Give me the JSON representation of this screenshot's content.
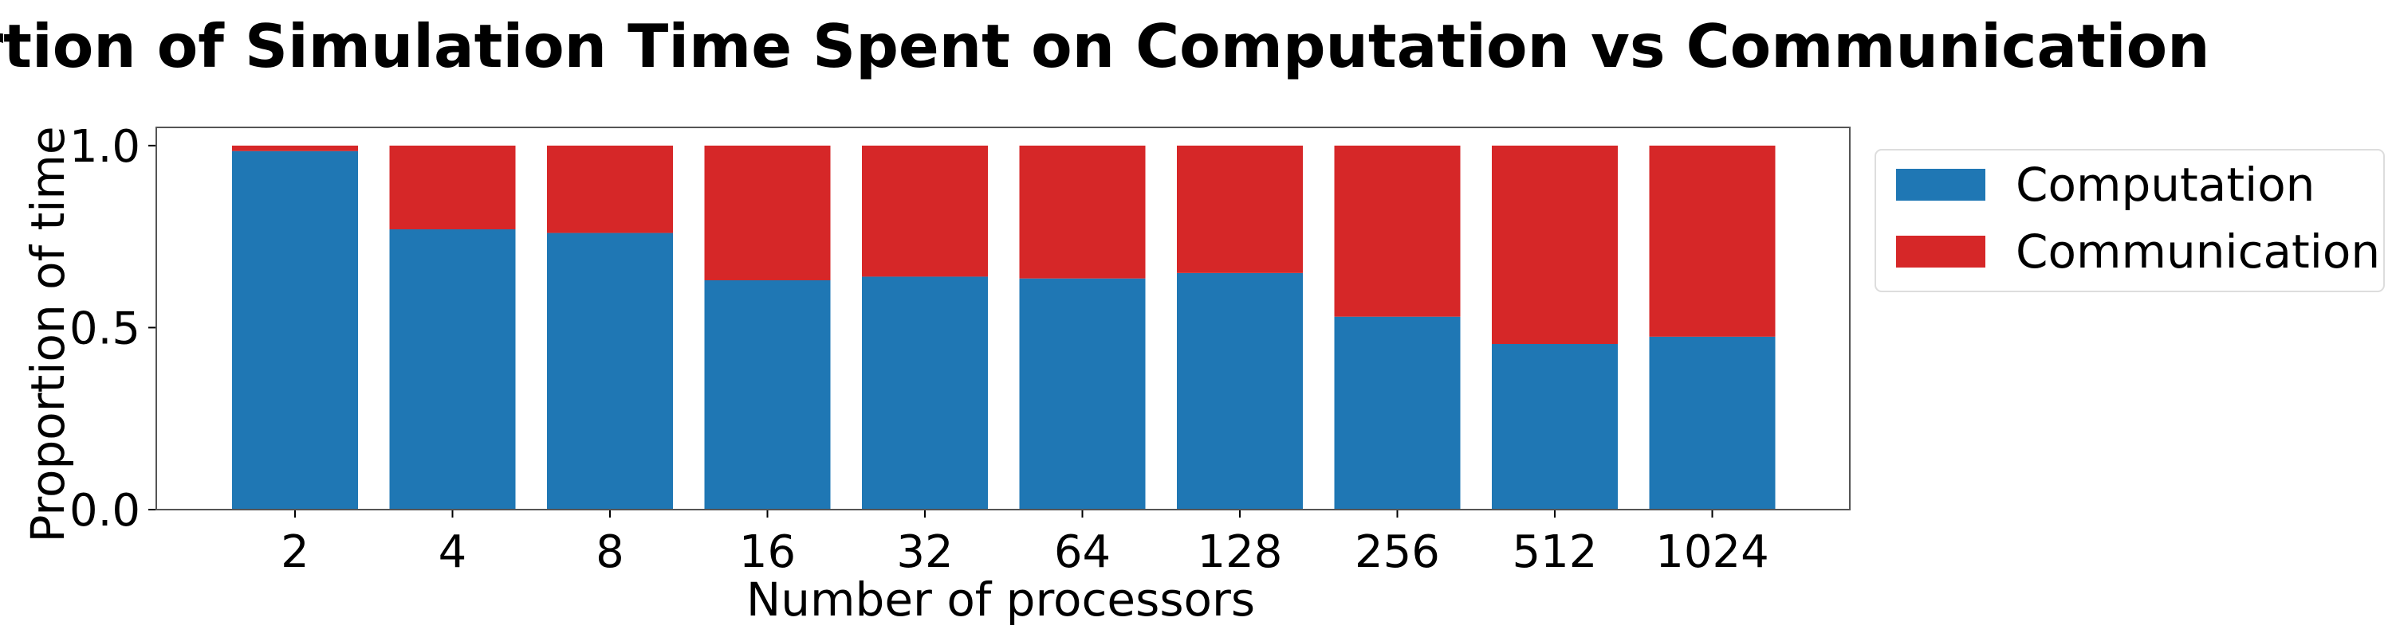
{
  "chart_data": {
    "type": "bar",
    "stacked": true,
    "title": "Proportion of Simulation Time Spent on Computation vs Communication",
    "xlabel": "Number of processors",
    "ylabel": "Proportion of time",
    "categories": [
      "2",
      "4",
      "8",
      "16",
      "32",
      "64",
      "128",
      "256",
      "512",
      "1024"
    ],
    "series": [
      {
        "name": "Computation",
        "color": "#1f77b4",
        "values": [
          0.985,
          0.77,
          0.76,
          0.63,
          0.64,
          0.635,
          0.65,
          0.53,
          0.455,
          0.475
        ]
      },
      {
        "name": "Communication",
        "color": "#d62728",
        "values": [
          0.015,
          0.23,
          0.24,
          0.37,
          0.36,
          0.365,
          0.35,
          0.47,
          0.545,
          0.525
        ]
      }
    ],
    "ylim": [
      0,
      1.05
    ],
    "yticks": [
      0.0,
      0.5,
      1.0
    ],
    "ytick_labels": [
      "0.0",
      "0.5",
      "1.0"
    ],
    "grid": false,
    "legend_position": "outside-upper-right"
  }
}
